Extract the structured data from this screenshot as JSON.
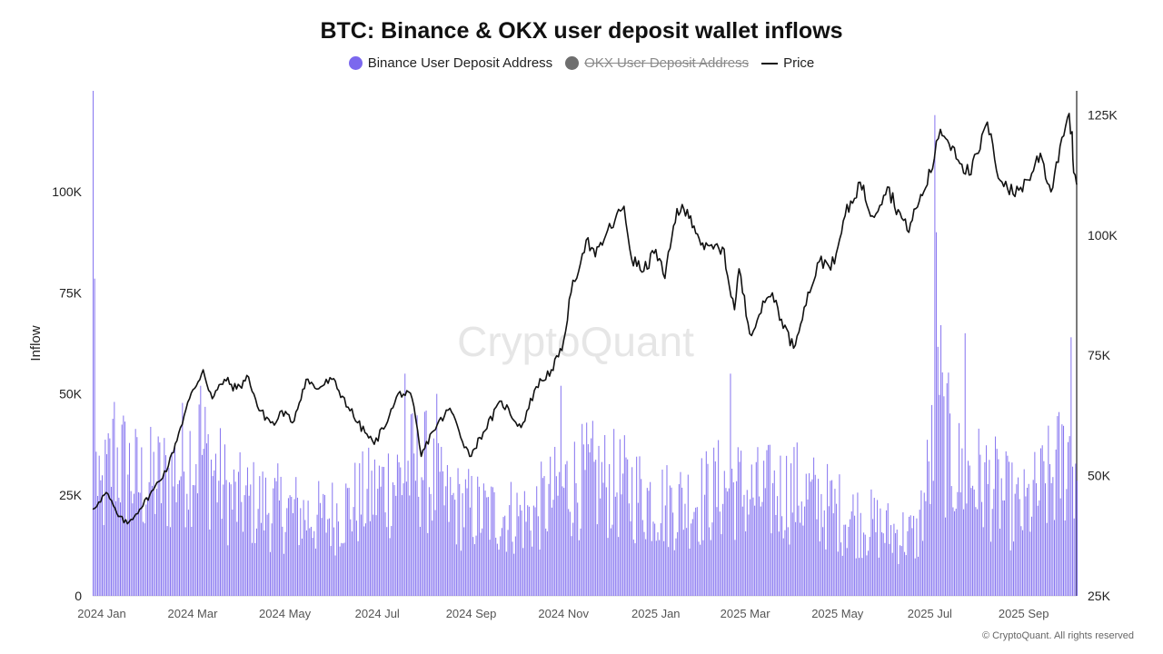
{
  "page": {
    "copyright": "© CryptoQuant. All rights reserved",
    "watermark": "CryptoQuant"
  },
  "chart_data": {
    "type": "bar",
    "title": "BTC: Binance & OKX user deposit wallet inflows",
    "ylabel": "Inflow",
    "ylabel_right": "",
    "ylim": [
      0,
      125000
    ],
    "ylim_right": [
      25000,
      130000
    ],
    "yticks": [
      {
        "value": 0,
        "label": "0"
      },
      {
        "value": 25000,
        "label": "25K"
      },
      {
        "value": 50000,
        "label": "50K"
      },
      {
        "value": 75000,
        "label": "75K"
      },
      {
        "value": 100000,
        "label": "100K"
      }
    ],
    "yticks_right": [
      {
        "value": 25000,
        "label": "25K"
      },
      {
        "value": 50000,
        "label": "50K"
      },
      {
        "value": 75000,
        "label": "75K"
      },
      {
        "value": 100000,
        "label": "100K"
      },
      {
        "value": 125000,
        "label": "125K"
      }
    ],
    "xlim": [
      "2024-01-01",
      "2025-10-12"
    ],
    "xticks": [
      {
        "date": "2024-01-01",
        "label": "2024 Jan"
      },
      {
        "date": "2024-03-01",
        "label": "2024 Mar"
      },
      {
        "date": "2024-05-01",
        "label": "2024 May"
      },
      {
        "date": "2024-07-01",
        "label": "2024 Jul"
      },
      {
        "date": "2024-09-01",
        "label": "2024 Sep"
      },
      {
        "date": "2024-11-01",
        "label": "2024 Nov"
      },
      {
        "date": "2025-01-01",
        "label": "2025 Jan"
      },
      {
        "date": "2025-03-01",
        "label": "2025 Mar"
      },
      {
        "date": "2025-05-01",
        "label": "2025 May"
      },
      {
        "date": "2025-07-01",
        "label": "2025 Jul"
      },
      {
        "date": "2025-09-01",
        "label": "2025 Sep"
      }
    ],
    "legend": [
      {
        "label": "Binance User Deposit Address",
        "color": "#7b68ee",
        "marker": "dot",
        "hidden": false
      },
      {
        "label": "OKX User Deposit Address",
        "color": "#6e6e6e",
        "marker": "dot",
        "hidden": true
      },
      {
        "label": "Price",
        "color": "#111111",
        "marker": "line",
        "hidden": false
      }
    ],
    "series": [
      {
        "name": "Binance User Deposit Address",
        "axis": "left",
        "type": "bar",
        "color": "#7b68ee",
        "anchors": [
          {
            "date": "2024-01-01",
            "value": 125000
          },
          {
            "date": "2024-01-04",
            "value": 30000
          },
          {
            "date": "2024-01-15",
            "value": 48000
          },
          {
            "date": "2024-02-01",
            "value": 38000
          },
          {
            "date": "2024-02-20",
            "value": 40000
          },
          {
            "date": "2024-03-05",
            "value": 48000
          },
          {
            "date": "2024-03-12",
            "value": 50000
          },
          {
            "date": "2024-04-01",
            "value": 33000
          },
          {
            "date": "2024-05-01",
            "value": 30000
          },
          {
            "date": "2024-06-01",
            "value": 26000
          },
          {
            "date": "2024-07-05",
            "value": 35000
          },
          {
            "date": "2024-07-20",
            "value": 40000
          },
          {
            "date": "2024-08-05",
            "value": 45000
          },
          {
            "date": "2024-08-20",
            "value": 32000
          },
          {
            "date": "2024-09-15",
            "value": 28000
          },
          {
            "date": "2024-10-15",
            "value": 27000
          },
          {
            "date": "2024-11-10",
            "value": 38000
          },
          {
            "date": "2024-11-25",
            "value": 40000
          },
          {
            "date": "2024-12-15",
            "value": 37000
          },
          {
            "date": "2025-01-15",
            "value": 31000
          },
          {
            "date": "2025-02-05",
            "value": 33000
          },
          {
            "date": "2025-02-25",
            "value": 38000
          },
          {
            "date": "2025-03-10",
            "value": 34000
          },
          {
            "date": "2025-04-08",
            "value": 36000
          },
          {
            "date": "2025-05-10",
            "value": 28000
          },
          {
            "date": "2025-06-10",
            "value": 22000
          },
          {
            "date": "2025-06-28",
            "value": 20000
          },
          {
            "date": "2025-07-05",
            "value": 38000
          },
          {
            "date": "2025-07-12",
            "value": 60000
          },
          {
            "date": "2025-07-25",
            "value": 42000
          },
          {
            "date": "2025-08-15",
            "value": 38000
          },
          {
            "date": "2025-09-05",
            "value": 28000
          },
          {
            "date": "2025-09-25",
            "value": 40000
          },
          {
            "date": "2025-10-08",
            "value": 50000
          },
          {
            "date": "2025-10-12",
            "value": 42000
          }
        ],
        "spikes": [
          {
            "date": "2024-01-01",
            "value": 125000
          },
          {
            "date": "2024-01-15",
            "value": 48000
          },
          {
            "date": "2024-03-12",
            "value": 52000
          },
          {
            "date": "2024-07-25",
            "value": 55000
          },
          {
            "date": "2024-08-15",
            "value": 50000
          },
          {
            "date": "2024-11-05",
            "value": 52000
          },
          {
            "date": "2025-02-25",
            "value": 55000
          },
          {
            "date": "2025-07-10",
            "value": 119000
          },
          {
            "date": "2025-07-11",
            "value": 90000
          },
          {
            "date": "2025-07-14",
            "value": 67000
          },
          {
            "date": "2025-07-30",
            "value": 65000
          },
          {
            "date": "2025-10-08",
            "value": 64000
          }
        ]
      },
      {
        "name": "Price",
        "axis": "right",
        "type": "line",
        "color": "#111111",
        "points": [
          {
            "date": "2024-01-01",
            "value": 43000
          },
          {
            "date": "2024-01-05",
            "value": 44500
          },
          {
            "date": "2024-01-10",
            "value": 46500
          },
          {
            "date": "2024-01-18",
            "value": 41500
          },
          {
            "date": "2024-01-24",
            "value": 40000
          },
          {
            "date": "2024-02-01",
            "value": 43000
          },
          {
            "date": "2024-02-10",
            "value": 47000
          },
          {
            "date": "2024-02-20",
            "value": 52000
          },
          {
            "date": "2024-02-28",
            "value": 60000
          },
          {
            "date": "2024-03-05",
            "value": 66000
          },
          {
            "date": "2024-03-14",
            "value": 72000
          },
          {
            "date": "2024-03-20",
            "value": 66000
          },
          {
            "date": "2024-03-28",
            "value": 70000
          },
          {
            "date": "2024-04-05",
            "value": 68000
          },
          {
            "date": "2024-04-13",
            "value": 70500
          },
          {
            "date": "2024-04-20",
            "value": 63500
          },
          {
            "date": "2024-04-30",
            "value": 60500
          },
          {
            "date": "2024-05-05",
            "value": 63500
          },
          {
            "date": "2024-05-12",
            "value": 61000
          },
          {
            "date": "2024-05-21",
            "value": 70000
          },
          {
            "date": "2024-05-28",
            "value": 68000
          },
          {
            "date": "2024-06-07",
            "value": 70000
          },
          {
            "date": "2024-06-14",
            "value": 66500
          },
          {
            "date": "2024-06-24",
            "value": 61000
          },
          {
            "date": "2024-07-05",
            "value": 56500
          },
          {
            "date": "2024-07-15",
            "value": 62500
          },
          {
            "date": "2024-07-22",
            "value": 67500
          },
          {
            "date": "2024-07-30",
            "value": 66000
          },
          {
            "date": "2024-08-05",
            "value": 54000
          },
          {
            "date": "2024-08-12",
            "value": 59000
          },
          {
            "date": "2024-08-24",
            "value": 64000
          },
          {
            "date": "2024-09-06",
            "value": 54000
          },
          {
            "date": "2024-09-15",
            "value": 59000
          },
          {
            "date": "2024-09-27",
            "value": 65500
          },
          {
            "date": "2024-10-10",
            "value": 60000
          },
          {
            "date": "2024-10-20",
            "value": 68500
          },
          {
            "date": "2024-10-30",
            "value": 72000
          },
          {
            "date": "2024-11-06",
            "value": 76000
          },
          {
            "date": "2024-11-12",
            "value": 88000
          },
          {
            "date": "2024-11-22",
            "value": 99000
          },
          {
            "date": "2024-11-28",
            "value": 95500
          },
          {
            "date": "2024-12-05",
            "value": 100000
          },
          {
            "date": "2024-12-17",
            "value": 106000
          },
          {
            "date": "2024-12-22",
            "value": 95000
          },
          {
            "date": "2024-12-30",
            "value": 92500
          },
          {
            "date": "2025-01-07",
            "value": 97000
          },
          {
            "date": "2025-01-13",
            "value": 91000
          },
          {
            "date": "2025-01-21",
            "value": 105500
          },
          {
            "date": "2025-01-30",
            "value": 104000
          },
          {
            "date": "2025-02-08",
            "value": 97000
          },
          {
            "date": "2025-02-20",
            "value": 97500
          },
          {
            "date": "2025-02-28",
            "value": 84500
          },
          {
            "date": "2025-03-03",
            "value": 93000
          },
          {
            "date": "2025-03-10",
            "value": 79500
          },
          {
            "date": "2025-03-20",
            "value": 86000
          },
          {
            "date": "2025-03-25",
            "value": 88000
          },
          {
            "date": "2025-03-31",
            "value": 82500
          },
          {
            "date": "2025-04-08",
            "value": 76500
          },
          {
            "date": "2025-04-15",
            "value": 85000
          },
          {
            "date": "2025-04-25",
            "value": 94500
          },
          {
            "date": "2025-05-05",
            "value": 94000
          },
          {
            "date": "2025-05-12",
            "value": 104000
          },
          {
            "date": "2025-05-22",
            "value": 111000
          },
          {
            "date": "2025-05-30",
            "value": 104000
          },
          {
            "date": "2025-06-09",
            "value": 110000
          },
          {
            "date": "2025-06-22",
            "value": 101000
          },
          {
            "date": "2025-06-30",
            "value": 107000
          },
          {
            "date": "2025-07-03",
            "value": 109000
          },
          {
            "date": "2025-07-10",
            "value": 116000
          },
          {
            "date": "2025-07-14",
            "value": 122000
          },
          {
            "date": "2025-07-22",
            "value": 118500
          },
          {
            "date": "2025-08-02",
            "value": 112500
          },
          {
            "date": "2025-08-08",
            "value": 117000
          },
          {
            "date": "2025-08-14",
            "value": 123500
          },
          {
            "date": "2025-08-20",
            "value": 113500
          },
          {
            "date": "2025-08-31",
            "value": 108500
          },
          {
            "date": "2025-09-10",
            "value": 111500
          },
          {
            "date": "2025-09-18",
            "value": 117000
          },
          {
            "date": "2025-09-25",
            "value": 109000
          },
          {
            "date": "2025-10-01",
            "value": 118500
          },
          {
            "date": "2025-10-06",
            "value": 124500
          },
          {
            "date": "2025-10-09",
            "value": 121500
          },
          {
            "date": "2025-10-10",
            "value": 113000
          },
          {
            "date": "2025-10-12",
            "value": 110500
          }
        ]
      }
    ],
    "grid": false,
    "legend_position": "top-center"
  }
}
